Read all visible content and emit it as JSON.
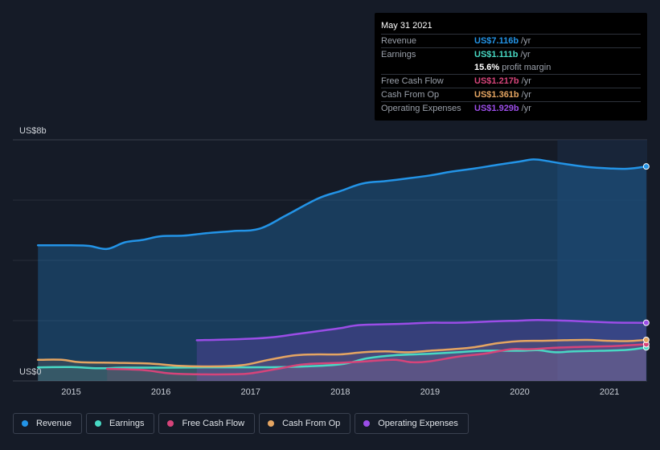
{
  "chart_data": {
    "type": "area",
    "y_axis": {
      "max_label": "US$8b",
      "min_label": "US$0",
      "ylim": [
        0,
        8
      ]
    },
    "x_axis": {
      "ticks": [
        "2015",
        "2016",
        "2017",
        "2018",
        "2019",
        "2020",
        "2021"
      ],
      "xlim": [
        2014.35,
        2021.42
      ]
    },
    "forecast_start": 2020.42,
    "series": [
      {
        "name": "Revenue",
        "color": "#2394e7",
        "points": [
          [
            2014.63,
            4.5
          ],
          [
            2015.0,
            4.5
          ],
          [
            2015.2,
            4.48
          ],
          [
            2015.4,
            4.38
          ],
          [
            2015.6,
            4.6
          ],
          [
            2015.8,
            4.68
          ],
          [
            2016.0,
            4.8
          ],
          [
            2016.25,
            4.82
          ],
          [
            2016.5,
            4.9
          ],
          [
            2016.8,
            4.97
          ],
          [
            2017.1,
            5.05
          ],
          [
            2017.4,
            5.5
          ],
          [
            2017.75,
            6.05
          ],
          [
            2018.0,
            6.3
          ],
          [
            2018.25,
            6.55
          ],
          [
            2018.5,
            6.63
          ],
          [
            2018.75,
            6.72
          ],
          [
            2019.0,
            6.82
          ],
          [
            2019.25,
            6.95
          ],
          [
            2019.5,
            7.05
          ],
          [
            2019.75,
            7.17
          ],
          [
            2020.0,
            7.28
          ],
          [
            2020.15,
            7.35
          ],
          [
            2020.3,
            7.3
          ],
          [
            2020.5,
            7.2
          ],
          [
            2020.75,
            7.1
          ],
          [
            2021.0,
            7.05
          ],
          [
            2021.2,
            7.04
          ],
          [
            2021.41,
            7.116
          ]
        ]
      },
      {
        "name": "Earnings",
        "color": "#48d9c4",
        "points": [
          [
            2014.63,
            0.45
          ],
          [
            2015.0,
            0.46
          ],
          [
            2015.3,
            0.42
          ],
          [
            2015.6,
            0.44
          ],
          [
            2016.0,
            0.44
          ],
          [
            2016.5,
            0.45
          ],
          [
            2017.0,
            0.45
          ],
          [
            2017.5,
            0.47
          ],
          [
            2018.0,
            0.55
          ],
          [
            2018.3,
            0.75
          ],
          [
            2018.6,
            0.85
          ],
          [
            2019.0,
            0.9
          ],
          [
            2019.3,
            0.95
          ],
          [
            2019.6,
            1.0
          ],
          [
            2020.0,
            1.0
          ],
          [
            2020.2,
            1.02
          ],
          [
            2020.4,
            0.95
          ],
          [
            2020.6,
            0.98
          ],
          [
            2020.9,
            1.0
          ],
          [
            2021.2,
            1.03
          ],
          [
            2021.41,
            1.111
          ]
        ]
      },
      {
        "name": "Free Cash Flow",
        "color": "#d6447a",
        "points": [
          [
            2015.4,
            0.4
          ],
          [
            2015.8,
            0.36
          ],
          [
            2016.1,
            0.25
          ],
          [
            2016.4,
            0.22
          ],
          [
            2016.8,
            0.22
          ],
          [
            2017.0,
            0.25
          ],
          [
            2017.3,
            0.4
          ],
          [
            2017.6,
            0.55
          ],
          [
            2018.0,
            0.6
          ],
          [
            2018.3,
            0.65
          ],
          [
            2018.6,
            0.7
          ],
          [
            2018.8,
            0.62
          ],
          [
            2019.0,
            0.65
          ],
          [
            2019.3,
            0.8
          ],
          [
            2019.6,
            0.9
          ],
          [
            2019.9,
            1.05
          ],
          [
            2020.1,
            1.05
          ],
          [
            2020.4,
            1.1
          ],
          [
            2020.7,
            1.13
          ],
          [
            2021.0,
            1.15
          ],
          [
            2021.2,
            1.18
          ],
          [
            2021.41,
            1.217
          ]
        ]
      },
      {
        "name": "Cash From Op",
        "color": "#e5a562",
        "points": [
          [
            2014.63,
            0.7
          ],
          [
            2014.9,
            0.7
          ],
          [
            2015.1,
            0.62
          ],
          [
            2015.5,
            0.6
          ],
          [
            2015.9,
            0.57
          ],
          [
            2016.2,
            0.5
          ],
          [
            2016.5,
            0.48
          ],
          [
            2016.9,
            0.52
          ],
          [
            2017.2,
            0.7
          ],
          [
            2017.5,
            0.85
          ],
          [
            2017.75,
            0.88
          ],
          [
            2018.0,
            0.88
          ],
          [
            2018.25,
            0.95
          ],
          [
            2018.5,
            0.98
          ],
          [
            2018.75,
            0.95
          ],
          [
            2019.0,
            1.0
          ],
          [
            2019.25,
            1.05
          ],
          [
            2019.5,
            1.12
          ],
          [
            2019.75,
            1.25
          ],
          [
            2020.0,
            1.32
          ],
          [
            2020.25,
            1.33
          ],
          [
            2020.5,
            1.35
          ],
          [
            2020.75,
            1.36
          ],
          [
            2021.0,
            1.33
          ],
          [
            2021.2,
            1.32
          ],
          [
            2021.41,
            1.361
          ]
        ]
      },
      {
        "name": "Operating Expenses",
        "color": "#9b4de7",
        "points": [
          [
            2016.4,
            1.35
          ],
          [
            2016.7,
            1.37
          ],
          [
            2017.0,
            1.4
          ],
          [
            2017.25,
            1.45
          ],
          [
            2017.5,
            1.55
          ],
          [
            2017.75,
            1.65
          ],
          [
            2018.0,
            1.75
          ],
          [
            2018.2,
            1.85
          ],
          [
            2018.5,
            1.88
          ],
          [
            2018.75,
            1.9
          ],
          [
            2019.0,
            1.93
          ],
          [
            2019.25,
            1.93
          ],
          [
            2019.5,
            1.95
          ],
          [
            2019.75,
            1.98
          ],
          [
            2020.0,
            2.0
          ],
          [
            2020.2,
            2.02
          ],
          [
            2020.5,
            2.0
          ],
          [
            2020.75,
            1.97
          ],
          [
            2021.0,
            1.94
          ],
          [
            2021.2,
            1.93
          ],
          [
            2021.41,
            1.929
          ]
        ]
      }
    ]
  },
  "tooltip": {
    "date": "May 31 2021",
    "rows": [
      {
        "label": "Revenue",
        "value": "US$7.116b",
        "unit": "/yr",
        "color": "#2394e7"
      },
      {
        "label": "Earnings",
        "value": "US$1.111b",
        "unit": "/yr",
        "color": "#48d9c4"
      },
      {
        "label": "",
        "value": "15.6%",
        "unit": "profit margin",
        "color": "#ffffff"
      },
      {
        "label": "Free Cash Flow",
        "value": "US$1.217b",
        "unit": "/yr",
        "color": "#d6447a"
      },
      {
        "label": "Cash From Op",
        "value": "US$1.361b",
        "unit": "/yr",
        "color": "#e5a562"
      },
      {
        "label": "Operating Expenses",
        "value": "US$1.929b",
        "unit": "/yr",
        "color": "#9b4de7"
      }
    ]
  },
  "legend": [
    {
      "label": "Revenue",
      "color": "#2394e7"
    },
    {
      "label": "Earnings",
      "color": "#48d9c4"
    },
    {
      "label": "Free Cash Flow",
      "color": "#d6447a"
    },
    {
      "label": "Cash From Op",
      "color": "#e5a562"
    },
    {
      "label": "Operating Expenses",
      "color": "#9b4de7"
    }
  ]
}
